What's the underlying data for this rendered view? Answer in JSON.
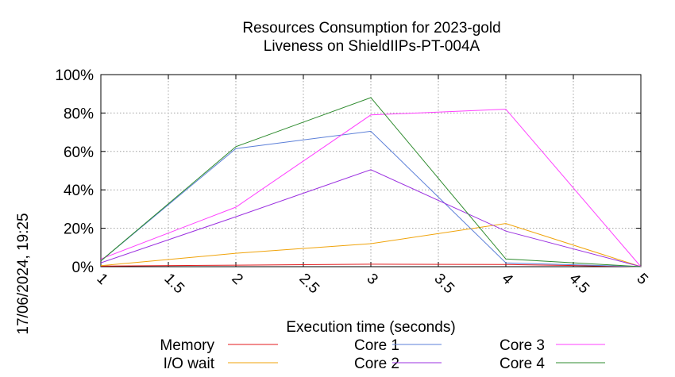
{
  "timestamp": "17/06/2024, 19:25",
  "chart_data": {
    "type": "line",
    "title": [
      "Resources Consumption for 2023-gold",
      "Liveness on ShieldIIPs-PT-004A"
    ],
    "xlabel": "Execution time (seconds)",
    "ylabel": "",
    "xlim": [
      1,
      5
    ],
    "ylim": [
      0,
      100
    ],
    "x_ticks": [
      "1",
      "1.5",
      "2",
      "2.5",
      "3",
      "3.5",
      "4",
      "4.5",
      "5"
    ],
    "y_ticks": [
      "0%",
      "20%",
      "40%",
      "60%",
      "80%",
      "100%"
    ],
    "grid": true,
    "legend_position": "bottom",
    "series": [
      {
        "name": "Memory",
        "color": "#e41a1c",
        "x": [
          1,
          2,
          3,
          4,
          5
        ],
        "y": [
          0.3,
          0.8,
          1.3,
          1.1,
          0
        ]
      },
      {
        "name": "I/O wait",
        "color": "#f0a30a",
        "x": [
          1,
          2,
          3,
          4,
          5
        ],
        "y": [
          0.5,
          7,
          12,
          22.5,
          0
        ]
      },
      {
        "name": "Core 1",
        "color": "#5b7fd8",
        "x": [
          1,
          2,
          3,
          4,
          5
        ],
        "y": [
          3,
          61.5,
          70.5,
          2,
          0
        ]
      },
      {
        "name": "Core 2",
        "color": "#9b30e0",
        "x": [
          1,
          2,
          3,
          4,
          5
        ],
        "y": [
          2,
          26,
          50.5,
          18.5,
          0
        ]
      },
      {
        "name": "Core 3",
        "color": "#ff40ff",
        "x": [
          1,
          2,
          3,
          4,
          5
        ],
        "y": [
          4,
          31,
          79,
          82,
          0
        ]
      },
      {
        "name": "Core 4",
        "color": "#2e8b2e",
        "x": [
          1,
          2,
          3,
          4,
          5
        ],
        "y": [
          3,
          62.5,
          88,
          4,
          0
        ]
      }
    ]
  }
}
